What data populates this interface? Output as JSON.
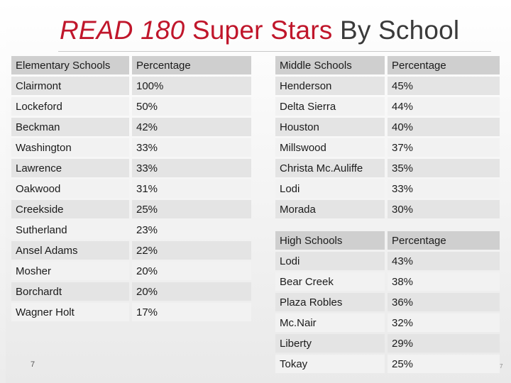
{
  "title": {
    "part1": "READ 180",
    "part2": " Super Stars",
    "part3": " By School"
  },
  "elementary": {
    "headers": [
      "Elementary Schools",
      "Percentage"
    ],
    "rows": [
      [
        "Clairmont",
        "100%"
      ],
      [
        "Lockeford",
        "50%"
      ],
      [
        "Beckman",
        "42%"
      ],
      [
        "Washington",
        "33%"
      ],
      [
        "Lawrence",
        "33%"
      ],
      [
        "Oakwood",
        "31%"
      ],
      [
        "Creekside",
        "25%"
      ],
      [
        "Sutherland",
        "23%"
      ],
      [
        "Ansel Adams",
        "22%"
      ],
      [
        "Mosher",
        "20%"
      ],
      [
        "Borchardt",
        "20%"
      ],
      [
        "Wagner Holt",
        "17%"
      ]
    ]
  },
  "middle": {
    "headers": [
      "Middle Schools",
      "Percentage"
    ],
    "rows": [
      [
        "Henderson",
        "45%"
      ],
      [
        "Delta Sierra",
        "44%"
      ],
      [
        "Houston",
        "40%"
      ],
      [
        "Millswood",
        "37%"
      ],
      [
        "Christa Mc.Auliffe",
        "35%"
      ],
      [
        "Lodi",
        "33%"
      ],
      [
        "Morada",
        "30%"
      ]
    ]
  },
  "high": {
    "headers": [
      "High Schools",
      "Percentage"
    ],
    "rows": [
      [
        "Lodi",
        "43%"
      ],
      [
        "Bear Creek",
        "38%"
      ],
      [
        "Plaza Robles",
        "36%"
      ],
      [
        "Mc.Nair",
        "32%"
      ],
      [
        "Liberty",
        "29%"
      ],
      [
        "Tokay",
        "25%"
      ]
    ]
  },
  "footer": {
    "page_number": "7",
    "page_number_right": "7"
  },
  "colors": {
    "accent": "#c0162b",
    "header_cell": "#cfcfcf",
    "row_dark": "#e4e4e4",
    "row_light": "#f2f2f2"
  }
}
